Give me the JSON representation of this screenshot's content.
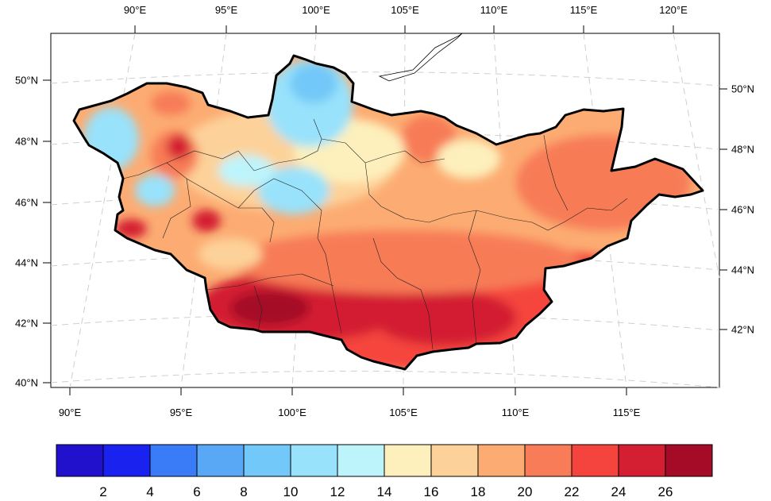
{
  "map": {
    "top_lon_labels": [
      "90°E",
      "95°E",
      "100°E",
      "105°E",
      "110°E",
      "115°E",
      "120°E"
    ],
    "bottom_lon_labels": [
      "90°E",
      "95°E",
      "100°E",
      "105°E",
      "110°E",
      "115°E"
    ],
    "left_lat_labels": [
      "50°N",
      "48°N",
      "46°N",
      "44°N",
      "42°N",
      "40°N"
    ],
    "right_lat_labels": [
      "50°N",
      "48°N",
      "46°N",
      "44°N",
      "42°N"
    ]
  },
  "colorbar": {
    "levels": [
      "2",
      "4",
      "6",
      "8",
      "10",
      "12",
      "14",
      "16",
      "18",
      "20",
      "22",
      "24",
      "26"
    ],
    "colors": [
      "#2211cc",
      "#1a22f0",
      "#3a7cf8",
      "#58a8f6",
      "#72c8f8",
      "#98e2fb",
      "#bdf4fb",
      "#fdf0bc",
      "#fdd29a",
      "#fcac72",
      "#f77c57",
      "#f5443d",
      "#d31f31",
      "#a50a26"
    ]
  },
  "chart_data": {
    "type": "heatmap",
    "title": "",
    "region": "Mongolia",
    "lon_range": [
      "88°E",
      "122°E"
    ],
    "lat_range": [
      "40°N",
      "51°N"
    ],
    "color_levels": [
      2,
      4,
      6,
      8,
      10,
      12,
      14,
      16,
      18,
      20,
      22,
      24,
      26
    ],
    "field_description": "cool 8–14 in north-central mountains and far west; 16–20 across central steppe and east; 22–28 along the southern Gobi, maximum near 98–100°E, 42–43°N"
  }
}
